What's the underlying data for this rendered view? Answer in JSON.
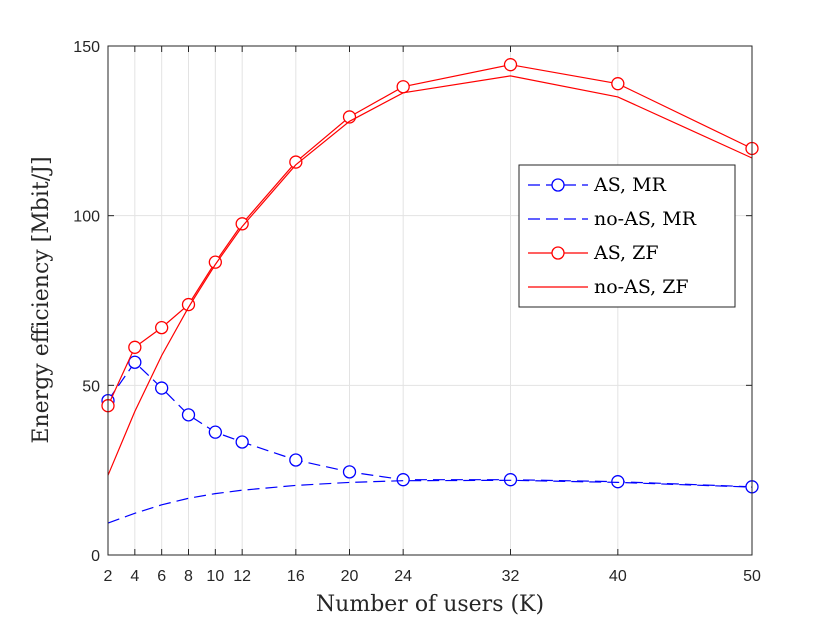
{
  "chart_data": {
    "type": "line",
    "title": "",
    "xlabel": "Number of users (K)",
    "ylabel": "Energy efficiency [Mbit/J]",
    "xlim": [
      2,
      50
    ],
    "ylim": [
      0,
      150
    ],
    "xticks": [
      2,
      4,
      6,
      8,
      10,
      12,
      16,
      20,
      24,
      32,
      40,
      50
    ],
    "yticks": [
      0,
      50,
      100,
      150
    ],
    "grid": true,
    "legend_position": "right",
    "series": [
      {
        "name": "AS, MR",
        "color": "#0000ff",
        "line": "dashed",
        "marker": "circle",
        "x": [
          2,
          4,
          6,
          8,
          10,
          12,
          16,
          20,
          24,
          32,
          40,
          50
        ],
        "values": [
          45.5,
          56.8,
          49.2,
          41.3,
          36.2,
          33.3,
          28.0,
          24.5,
          22.2,
          22.2,
          21.6,
          20.1
        ]
      },
      {
        "name": "no-AS, MR",
        "color": "#0000ff",
        "line": "dashed",
        "marker": "none",
        "x": [
          2,
          4,
          6,
          8,
          10,
          12,
          16,
          20,
          24,
          32,
          40,
          50
        ],
        "values": [
          9.4,
          12.3,
          14.8,
          16.7,
          18.1,
          19.1,
          20.5,
          21.4,
          21.9,
          22.0,
          21.4,
          20.0
        ]
      },
      {
        "name": "AS, ZF",
        "color": "#ff0000",
        "line": "solid",
        "marker": "circle",
        "x": [
          2,
          4,
          6,
          8,
          10,
          12,
          16,
          20,
          24,
          32,
          40,
          50
        ],
        "values": [
          44.0,
          61.2,
          67.0,
          73.8,
          86.3,
          97.6,
          115.8,
          129.1,
          138.0,
          144.5,
          138.9,
          119.8
        ]
      },
      {
        "name": "no-AS, ZF",
        "color": "#ff0000",
        "line": "solid",
        "marker": "none",
        "x": [
          2,
          4,
          6,
          8,
          10,
          12,
          16,
          20,
          24,
          32,
          40,
          50
        ],
        "values": [
          23.5,
          42.3,
          58.8,
          73.0,
          85.6,
          96.8,
          115.0,
          127.8,
          136.2,
          141.2,
          135.0,
          117.0
        ]
      }
    ]
  }
}
